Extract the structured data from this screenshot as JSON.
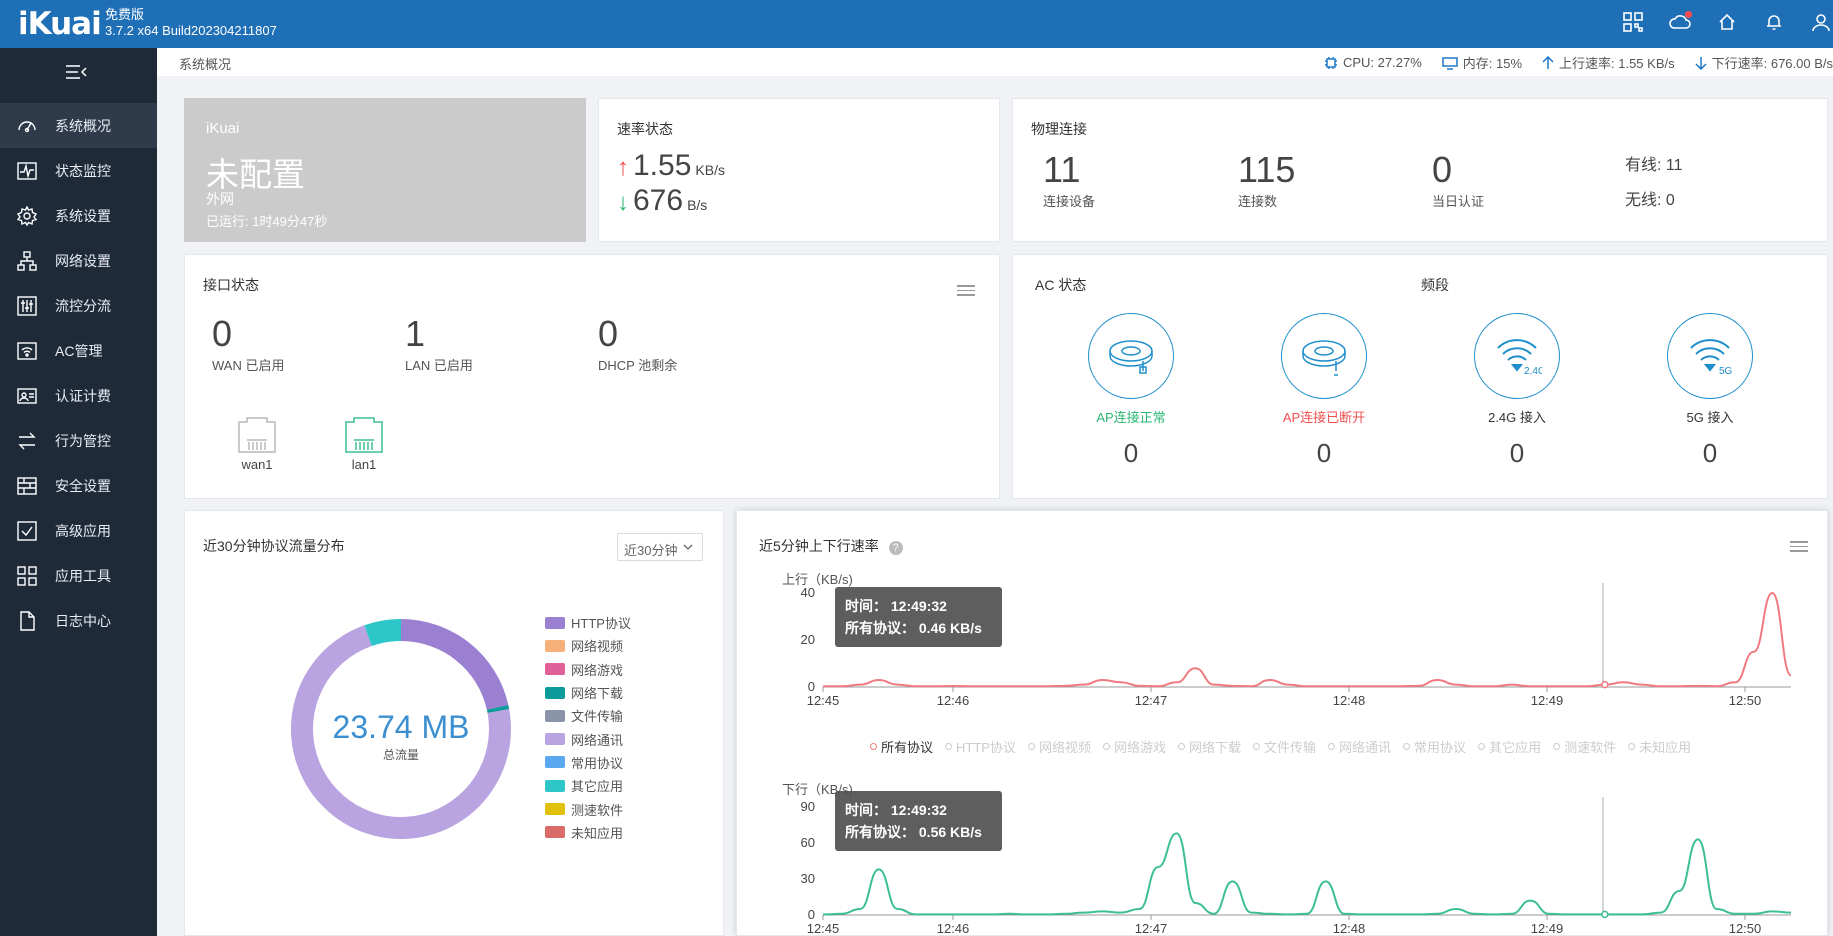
{
  "app": {
    "logo": "iKuai",
    "edition": "免费版",
    "build": "3.7.2 x64 Build202304211807"
  },
  "topbar_icons": [
    "qr-grid-icon",
    "cloud-icon",
    "home-icon",
    "bell-icon",
    "user-icon"
  ],
  "sidebar": {
    "items": [
      {
        "label": "系统概况",
        "icon": "dashboard-icon",
        "active": true
      },
      {
        "label": "状态监控",
        "icon": "monitor-icon"
      },
      {
        "label": "系统设置",
        "icon": "gear-icon"
      },
      {
        "label": "网络设置",
        "icon": "network-icon"
      },
      {
        "label": "流控分流",
        "icon": "sliders-icon"
      },
      {
        "label": "AC管理",
        "icon": "wifi-icon"
      },
      {
        "label": "认证计费",
        "icon": "id-card-icon"
      },
      {
        "label": "行为管控",
        "icon": "swap-icon"
      },
      {
        "label": "安全设置",
        "icon": "firewall-icon"
      },
      {
        "label": "高级应用",
        "icon": "check-box-icon"
      },
      {
        "label": "应用工具",
        "icon": "apps-icon"
      },
      {
        "label": "日志中心",
        "icon": "file-icon"
      }
    ]
  },
  "subheader": {
    "breadcrumb": "系统概况",
    "cpu": "CPU: 27.27%",
    "memory": "内存: 15%",
    "upload": "上行速率: 1.55 KB/s",
    "download": "下行速率: 676.00 B/s"
  },
  "ikuai_card": {
    "name": "iKuai",
    "status": "未配置",
    "wan": "外网",
    "uptime": "已运行: 1时49分47秒"
  },
  "rate_card": {
    "title": "速率状态",
    "up_value": "1.55",
    "up_unit": "KB/s",
    "down_value": "676",
    "down_unit": "B/s"
  },
  "phys_card": {
    "title": "物理连接",
    "devices": "11",
    "devices_label": "连接设备",
    "connections": "115",
    "connections_label": "连接数",
    "auth_today": "0",
    "auth_today_label": "当日认证",
    "wired": "有线: 11",
    "wireless": "无线: 0"
  },
  "iface_card": {
    "title": "接口状态",
    "wan_count": "0",
    "wan_label": "WAN 已启用",
    "lan_count": "1",
    "lan_label": "LAN 已启用",
    "dhcp_count": "0",
    "dhcp_label": "DHCP 池剩余",
    "ports": [
      {
        "name": "wan1",
        "color": "#b8b8b8"
      },
      {
        "name": "lan1",
        "color": "#3fbf8f"
      }
    ]
  },
  "ac_card": {
    "title": "AC 状态",
    "band_title": "频段",
    "items": [
      {
        "label": "AP连接正常",
        "count": "0",
        "color": "#2bb673"
      },
      {
        "label": "AP连接已断开",
        "count": "0",
        "color": "#f05050"
      },
      {
        "label": "2.4G 接入",
        "count": "0",
        "color": "#444444",
        "band": "2.4G"
      },
      {
        "label": "5G 接入",
        "count": "0",
        "color": "#444444",
        "band": "5G"
      }
    ]
  },
  "protocol_card": {
    "title": "近30分钟协议流量分布",
    "range": "近30分钟",
    "total": "23.74 MB",
    "total_label": "总流量",
    "legend": [
      {
        "label": "HTTP协议",
        "color": "#9b7fd1"
      },
      {
        "label": "网络视频",
        "color": "#f8b07a"
      },
      {
        "label": "网络游戏",
        "color": "#e0609a"
      },
      {
        "label": "网络下载",
        "color": "#0d9a9a"
      },
      {
        "label": "文件传输",
        "color": "#8a94a8"
      },
      {
        "label": "网络通讯",
        "color": "#b9a3e0"
      },
      {
        "label": "常用协议",
        "color": "#59a8f0"
      },
      {
        "label": "其它应用",
        "color": "#2ec7c9"
      },
      {
        "label": "测速软件",
        "color": "#e2c10c"
      },
      {
        "label": "未知应用",
        "color": "#d96b6b"
      }
    ]
  },
  "rate_chart_card": {
    "title": "近5分钟上下行速率",
    "up_axis": "上行（KB/s)",
    "down_axis": "下行（KB/s)",
    "legend": [
      "所有协议",
      "HTTP协议",
      "网络视频",
      "网络游戏",
      "网络下载",
      "文件传输",
      "网络通讯",
      "常用协议",
      "其它应用",
      "测速软件",
      "未知应用"
    ],
    "tooltip_up": {
      "time": "时间：  12:49:32",
      "value": "所有协议：  0.46 KB/s"
    },
    "tooltip_down": {
      "time": "时间：  12:49:32",
      "value": "所有协议：  0.56 KB/s"
    }
  },
  "chart_data": [
    {
      "type": "pie",
      "title": "近30分钟协议流量分布",
      "categories": [
        "HTTP协议",
        "网络下载",
        "网络通讯",
        "其它应用"
      ],
      "values": [
        21.5,
        0.6,
        72.5,
        5.4
      ],
      "colors": [
        "#9b7fd1",
        "#0d9a9a",
        "#b9a3e0",
        "#2ec7c9"
      ]
    },
    {
      "type": "line",
      "title": "上行（KB/s)",
      "x_ticks": [
        "12:45",
        "12:46",
        "12:47",
        "12:48",
        "12:49",
        "12:50"
      ],
      "ylim": [
        0,
        40
      ],
      "y_ticks": [
        0,
        20,
        40
      ],
      "series": [
        {
          "name": "所有协议",
          "color": "#f07a80",
          "values": [
            0.3,
            0.3,
            1,
            3,
            1,
            0.3,
            0.3,
            0.4,
            0.3,
            0.3,
            0.3,
            0.3,
            0.3,
            0.5,
            1,
            3,
            2,
            0.5,
            0.3,
            2,
            8,
            1,
            0.5,
            0.3,
            3,
            1,
            0.3,
            0.3,
            0.3,
            0.3,
            0.3,
            0.3,
            0.5,
            3,
            1,
            0.3,
            0.3,
            1,
            0.3,
            0.3,
            0.3,
            0.3,
            1,
            2,
            1,
            0.3,
            0.3,
            0.5,
            0.3,
            2,
            15,
            40,
            5
          ]
        }
      ]
    },
    {
      "type": "line",
      "title": "下行（KB/s)",
      "x_ticks": [
        "12:45",
        "12:46",
        "12:47",
        "12:48",
        "12:49",
        "12:50"
      ],
      "ylim": [
        0,
        90
      ],
      "y_ticks": [
        0,
        30,
        60,
        90
      ],
      "series": [
        {
          "name": "所有协议",
          "color": "#3cc08f",
          "values": [
            0.5,
            1,
            5,
            38,
            5,
            0.5,
            0.5,
            0.5,
            0.5,
            0.5,
            1,
            0.5,
            0.5,
            1,
            2,
            3,
            2,
            5,
            40,
            68,
            10,
            1,
            28,
            2,
            1,
            0.5,
            1,
            28,
            1,
            0.5,
            0.5,
            0.5,
            0.5,
            1,
            5,
            1,
            0.5,
            1,
            12,
            1,
            0.5,
            0.5,
            0.5,
            0.5,
            0.5,
            2,
            20,
            63,
            5,
            1,
            1,
            3,
            2
          ]
        }
      ]
    }
  ]
}
